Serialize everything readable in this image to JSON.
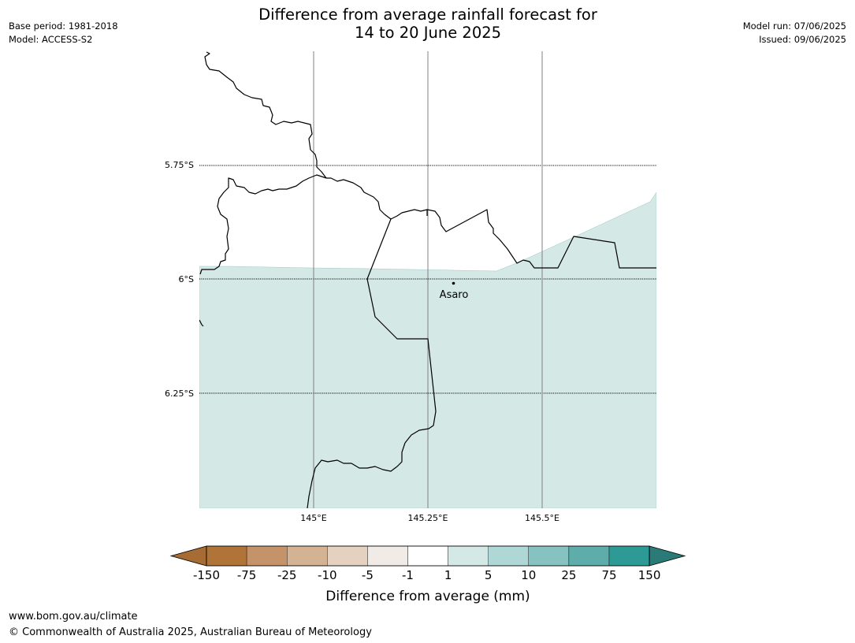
{
  "header": {
    "title_line1": "Difference from average rainfall forecast for",
    "title_line2": "14 to 20 June 2025",
    "base_period": "Base period: 1981-2018",
    "model": "Model: ACCESS-S2",
    "model_run": "Model run: 07/06/2025",
    "issued": "Issued: 09/06/2025"
  },
  "map": {
    "latitude_labels": [
      "5.75°S",
      "6°S",
      "6.25°S"
    ],
    "longitude_labels": [
      "145°E",
      "145.25°E",
      "145.5°E"
    ],
    "places": [
      {
        "name": "Asaro"
      }
    ],
    "fill_colors": {
      "forecast_band": "#d4e8e6",
      "background": "#ffffff"
    }
  },
  "legend": {
    "title": "Difference from average (mm)",
    "ticks": [
      "-150",
      "-75",
      "-25",
      "-10",
      "-5",
      "-1",
      "1",
      "5",
      "10",
      "25",
      "75",
      "150"
    ],
    "colors": [
      "#a66c33",
      "#b07438",
      "#c4936a",
      "#d4b394",
      "#e5d1bf",
      "#f0ebe7",
      "#ffffff",
      "#d4e8e6",
      "#afd7d6",
      "#86c2bf",
      "#5eadab",
      "#2e9a96",
      "#2a7a78"
    ]
  },
  "footer": {
    "url": "www.bom.gov.au/climate",
    "copyright": "© Commonwealth of Australia 2025, Australian Bureau of Meteorology"
  }
}
